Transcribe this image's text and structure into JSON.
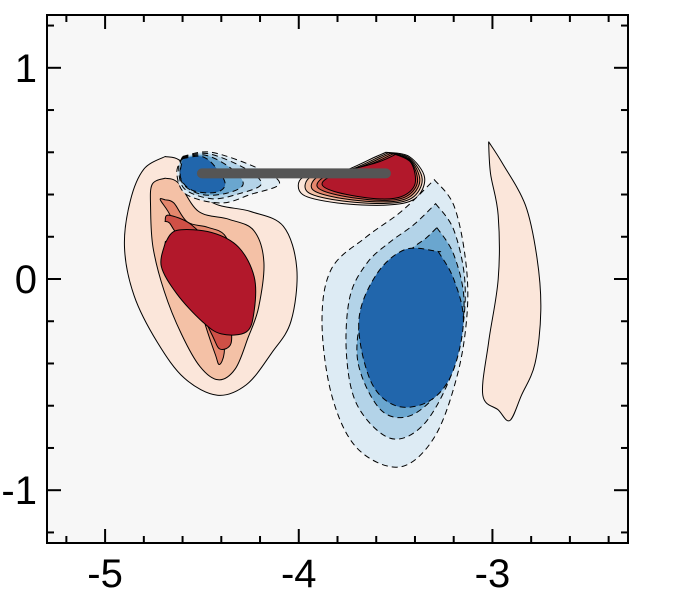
{
  "chart_data": {
    "type": "contour",
    "title": "",
    "xlabel": "",
    "ylabel": "",
    "xlim": [
      -5.3,
      -2.3
    ],
    "ylim": [
      -1.25,
      1.25
    ],
    "x_ticks": [
      {
        "value": -5,
        "label": "-5"
      },
      {
        "value": -4,
        "label": "-4"
      },
      {
        "value": -3,
        "label": "-3"
      }
    ],
    "y_ticks": [
      {
        "value": 1,
        "label": "1"
      },
      {
        "value": 0,
        "label": "0"
      },
      {
        "value": -1,
        "label": "-1"
      }
    ],
    "grid": false,
    "background_color": "#f7f7f7",
    "levels": [
      {
        "name": "positive-1",
        "color": "#fbe6da",
        "line": "solid"
      },
      {
        "name": "positive-2",
        "color": "#f4c1a6",
        "line": "solid"
      },
      {
        "name": "positive-3",
        "color": "#e5876d",
        "line": "solid"
      },
      {
        "name": "positive-4",
        "color": "#cf5046",
        "line": "solid"
      },
      {
        "name": "positive-5",
        "color": "#b2182b",
        "line": "solid"
      },
      {
        "name": "negative-1",
        "color": "#ddebf4",
        "line": "dashed"
      },
      {
        "name": "negative-2",
        "color": "#b3d3e8",
        "line": "dashed"
      },
      {
        "name": "negative-3",
        "color": "#6aa6cf",
        "line": "dashed"
      },
      {
        "name": "negative-5",
        "color": "#2166ac",
        "line": "dashed"
      }
    ],
    "regions": [
      {
        "name": "left-positive-vortex",
        "sign": "positive",
        "levels": 5,
        "outline": [
          [
            -4.69,
            0.58
          ],
          [
            -4.8,
            0.52
          ],
          [
            -4.87,
            0.37
          ],
          [
            -4.9,
            0.15
          ],
          [
            -4.85,
            -0.08
          ],
          [
            -4.73,
            -0.3
          ],
          [
            -4.59,
            -0.47
          ],
          [
            -4.42,
            -0.55
          ],
          [
            -4.27,
            -0.5
          ],
          [
            -4.14,
            -0.35
          ],
          [
            -4.04,
            -0.2
          ],
          [
            -4.01,
            0.05
          ],
          [
            -4.08,
            0.25
          ],
          [
            -4.25,
            0.32
          ],
          [
            -4.46,
            0.37
          ],
          [
            -4.6,
            0.55
          ],
          [
            -4.69,
            0.58
          ]
        ],
        "core": [
          [
            -4.69,
            0.17
          ],
          [
            -4.63,
            0.23
          ],
          [
            -4.45,
            0.22
          ],
          [
            -4.31,
            0.15
          ],
          [
            -4.23,
            0.01
          ],
          [
            -4.23,
            -0.15
          ],
          [
            -4.27,
            -0.25
          ],
          [
            -4.4,
            -0.26
          ],
          [
            -4.5,
            -0.2
          ],
          [
            -4.63,
            -0.07
          ],
          [
            -4.71,
            0.06
          ],
          [
            -4.69,
            0.17
          ]
        ]
      },
      {
        "name": "upper-negative-vortex",
        "sign": "negative",
        "levels": 5,
        "outline": [
          [
            -4.6,
            0.58
          ],
          [
            -4.45,
            0.6
          ],
          [
            -4.2,
            0.52
          ],
          [
            -4.1,
            0.45
          ],
          [
            -4.25,
            0.4
          ],
          [
            -4.4,
            0.36
          ],
          [
            -4.58,
            0.4
          ],
          [
            -4.63,
            0.5
          ],
          [
            -4.6,
            0.58
          ]
        ],
        "core": [
          [
            -4.6,
            0.57
          ],
          [
            -4.5,
            0.58
          ],
          [
            -4.43,
            0.53
          ],
          [
            -4.38,
            0.45
          ],
          [
            -4.43,
            0.41
          ],
          [
            -4.55,
            0.42
          ],
          [
            -4.61,
            0.48
          ],
          [
            -4.6,
            0.57
          ]
        ]
      },
      {
        "name": "upper-positive-vortex",
        "sign": "positive",
        "levels": 5,
        "outline": [
          [
            -3.55,
            0.6
          ],
          [
            -3.43,
            0.58
          ],
          [
            -3.35,
            0.48
          ],
          [
            -3.4,
            0.38
          ],
          [
            -3.55,
            0.35
          ],
          [
            -3.8,
            0.36
          ],
          [
            -3.98,
            0.4
          ],
          [
            -3.98,
            0.48
          ],
          [
            -3.8,
            0.5
          ],
          [
            -3.6,
            0.58
          ],
          [
            -3.55,
            0.6
          ]
        ],
        "core": [
          [
            -3.5,
            0.59
          ],
          [
            -3.42,
            0.55
          ],
          [
            -3.4,
            0.45
          ],
          [
            -3.47,
            0.39
          ],
          [
            -3.6,
            0.38
          ],
          [
            -3.8,
            0.41
          ],
          [
            -3.88,
            0.45
          ],
          [
            -3.8,
            0.5
          ],
          [
            -3.6,
            0.55
          ],
          [
            -3.5,
            0.59
          ]
        ]
      },
      {
        "name": "lower-negative-vortex",
        "sign": "negative",
        "levels": 5,
        "outline": [
          [
            -3.3,
            0.47
          ],
          [
            -3.2,
            0.35
          ],
          [
            -3.14,
            0.1
          ],
          [
            -3.13,
            -0.15
          ],
          [
            -3.18,
            -0.45
          ],
          [
            -3.3,
            -0.75
          ],
          [
            -3.48,
            -0.89
          ],
          [
            -3.7,
            -0.8
          ],
          [
            -3.83,
            -0.55
          ],
          [
            -3.88,
            -0.2
          ],
          [
            -3.83,
            0.05
          ],
          [
            -3.65,
            0.2
          ],
          [
            -3.47,
            0.32
          ],
          [
            -3.3,
            0.47
          ]
        ],
        "core": [
          [
            -3.28,
            0.13
          ],
          [
            -3.2,
            0.0
          ],
          [
            -3.15,
            -0.2
          ],
          [
            -3.21,
            -0.45
          ],
          [
            -3.33,
            -0.58
          ],
          [
            -3.5,
            -0.6
          ],
          [
            -3.63,
            -0.48
          ],
          [
            -3.69,
            -0.2
          ],
          [
            -3.6,
            0.02
          ],
          [
            -3.45,
            0.14
          ],
          [
            -3.28,
            0.13
          ]
        ]
      },
      {
        "name": "right-positive-band",
        "sign": "positive",
        "levels": 1,
        "outline": [
          [
            -3.02,
            0.65
          ],
          [
            -2.95,
            0.55
          ],
          [
            -2.83,
            0.35
          ],
          [
            -2.77,
            0.1
          ],
          [
            -2.75,
            -0.15
          ],
          [
            -2.78,
            -0.4
          ],
          [
            -2.85,
            -0.55
          ],
          [
            -2.91,
            -0.67
          ],
          [
            -2.97,
            -0.62
          ],
          [
            -3.05,
            -0.55
          ],
          [
            -3.02,
            -0.3
          ],
          [
            -2.97,
            0.0
          ],
          [
            -2.97,
            0.3
          ],
          [
            -3.01,
            0.5
          ],
          [
            -3.02,
            0.65
          ]
        ],
        "core": null
      }
    ],
    "body": {
      "name": "plate",
      "x": [
        -4.5,
        -3.55
      ],
      "y": 0.5,
      "color": "#555555"
    }
  }
}
